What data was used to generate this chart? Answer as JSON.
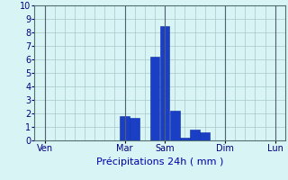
{
  "bar_values": [
    0,
    0,
    0,
    0,
    0,
    0,
    0,
    0,
    1.8,
    1.7,
    0,
    6.2,
    8.5,
    2.2,
    0.2,
    0.8,
    0.6,
    0,
    0,
    0,
    0,
    0,
    0,
    0
  ],
  "x_positions": [
    0,
    1,
    2,
    3,
    4,
    5,
    6,
    7,
    8,
    9,
    10,
    11,
    12,
    13,
    14,
    15,
    16,
    17,
    18,
    19,
    20,
    21,
    22,
    23
  ],
  "day_labels": [
    "Ven",
    "Mar",
    "Sam",
    "Dim",
    "Lun"
  ],
  "day_positions": [
    0,
    8,
    12,
    18,
    23
  ],
  "xlabel": "Précipitations 24h ( mm )",
  "ylim": [
    0,
    10
  ],
  "yticks": [
    0,
    1,
    2,
    3,
    4,
    5,
    6,
    7,
    8,
    9,
    10
  ],
  "bar_color": "#1a3fc4",
  "bar_edge_color": "#0a2aaa",
  "background_color": "#d8f4f4",
  "grid_color": "#a8c8c8",
  "axis_label_color": "#0000aa",
  "tick_color": "#000080",
  "xlabel_fontsize": 8,
  "tick_fontsize": 7,
  "xlim": [
    -1,
    24
  ]
}
